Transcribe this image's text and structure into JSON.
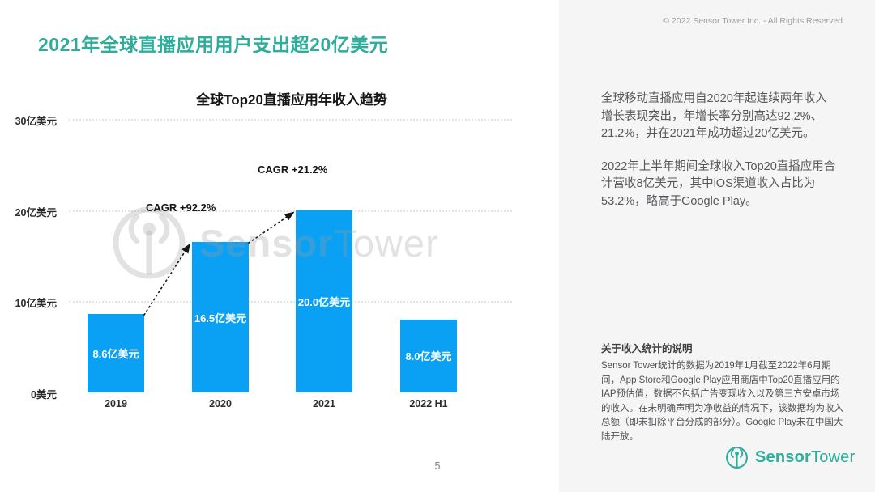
{
  "slide": {
    "title": "2021年全球直播应用用户支出超20亿美元",
    "page_number": "5"
  },
  "chart_data": {
    "type": "bar",
    "title": "全球Top20直播应用年收入趋势",
    "categories": [
      "2019",
      "2020",
      "2021",
      "2022 H1"
    ],
    "values": [
      8.6,
      16.5,
      20.0,
      8.0
    ],
    "value_labels": [
      "8.6亿美元",
      "16.5亿美元",
      "20.0亿美元",
      "8.0亿美元"
    ],
    "unit": "亿美元",
    "ylabel": "",
    "xlabel": "",
    "ylim": [
      0,
      30
    ],
    "y_ticks": [
      "30亿美元",
      "20亿美元",
      "10亿美元",
      "0美元"
    ],
    "grid": "dotted horizontal",
    "legend": "none",
    "bar_color": "#0AA0F4",
    "annotations": [
      "CAGR +92.2%",
      "CAGR +21.2%"
    ]
  },
  "watermark": {
    "text_bold": "Sensor",
    "text_light": "Tower"
  },
  "right_panel": {
    "copyright": "© 2022 Sensor Tower Inc. - All Rights Reserved",
    "paragraphs": [
      "全球移动直播应用自2020年起连续两年收入增长表现突出，年增长率分别高达92.2%、21.2%，并在2021年成功超过20亿美元。",
      "2022年上半年期间全球收入Top20直播应用合计营收8亿美元，其中iOS渠道收入占比为53.2%，略高于Google Play。"
    ],
    "note_title": "关于收入统计的说明",
    "note_body": "Sensor Tower统计的数据为2019年1月截至2022年6月期间，App Store和Google Play应用商店中Top20直播应用的IAP预估值，数据不包括广告变现收入以及第三方安卓市场的收入。在未明确声明为净收益的情况下，该数据均为收入总额（即未扣除平台分成的部分）。Google Play未在中国大陆开放。",
    "logo_text_bold": "Sensor",
    "logo_text_light": "Tower"
  },
  "colors": {
    "accent_teal": "#2EAD9B",
    "logo_teal": "#2FAE9C",
    "bar_blue": "#0AA0F4",
    "panel_bg": "#F5F5F6",
    "grid_gray": "#E2E2E2"
  }
}
